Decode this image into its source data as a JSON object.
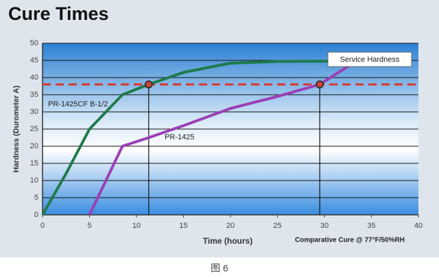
{
  "chart_data": {
    "type": "line",
    "title": "Cure Times",
    "ylabel": "Hardness (Durometer A)",
    "xlabel": "Time (hours)",
    "note": "Comparative Cure @ 77°F/50%RH",
    "xlim": [
      0,
      40
    ],
    "xticks": [
      0,
      5,
      10,
      15,
      20,
      25,
      30,
      35,
      40
    ],
    "ylim": [
      0,
      50
    ],
    "yticks": [
      0,
      5,
      10,
      15,
      20,
      25,
      30,
      35,
      40,
      45,
      50
    ],
    "grid": true,
    "series": [
      {
        "name": "PR-1425CF B-1/2",
        "color": "#1f7a4a",
        "x": [
          0,
          2.5,
          5,
          8.5,
          11.3,
          15,
          20,
          25,
          32
        ],
        "values": [
          0,
          12,
          25,
          35,
          38,
          41.5,
          44.2,
          44.7,
          44.8
        ]
      },
      {
        "name": "PR-1425",
        "color": "#9b3fb5",
        "x": [
          5,
          8.5,
          11.3,
          15,
          20,
          25,
          29.5,
          33.5
        ],
        "values": [
          0,
          20,
          22.5,
          26,
          31,
          34.5,
          38,
          45
        ]
      }
    ],
    "threshold": {
      "label": "Service Hardness",
      "value": 38,
      "color": "#d9342b"
    },
    "crossings": [
      11.3,
      29.5
    ]
  },
  "caption": "图 6"
}
